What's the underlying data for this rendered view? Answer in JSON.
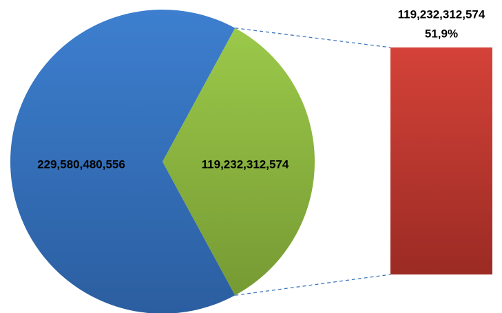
{
  "chart_data": {
    "type": "pie",
    "subtype": "bar-of-pie",
    "slices": [
      {
        "value": 229580480556,
        "label": "229,580,480,556",
        "color": "#3a78c3"
      },
      {
        "value": 119232312574,
        "label": "119,232,312,574",
        "color": "#8cb23f"
      }
    ],
    "breakout_bar": {
      "value": 119232312574,
      "label": "119,232,312,574",
      "percent_label": "51,9%",
      "color": "#c0392b"
    },
    "connector_color": "#3f77c0",
    "legend": "none",
    "grid": false
  }
}
